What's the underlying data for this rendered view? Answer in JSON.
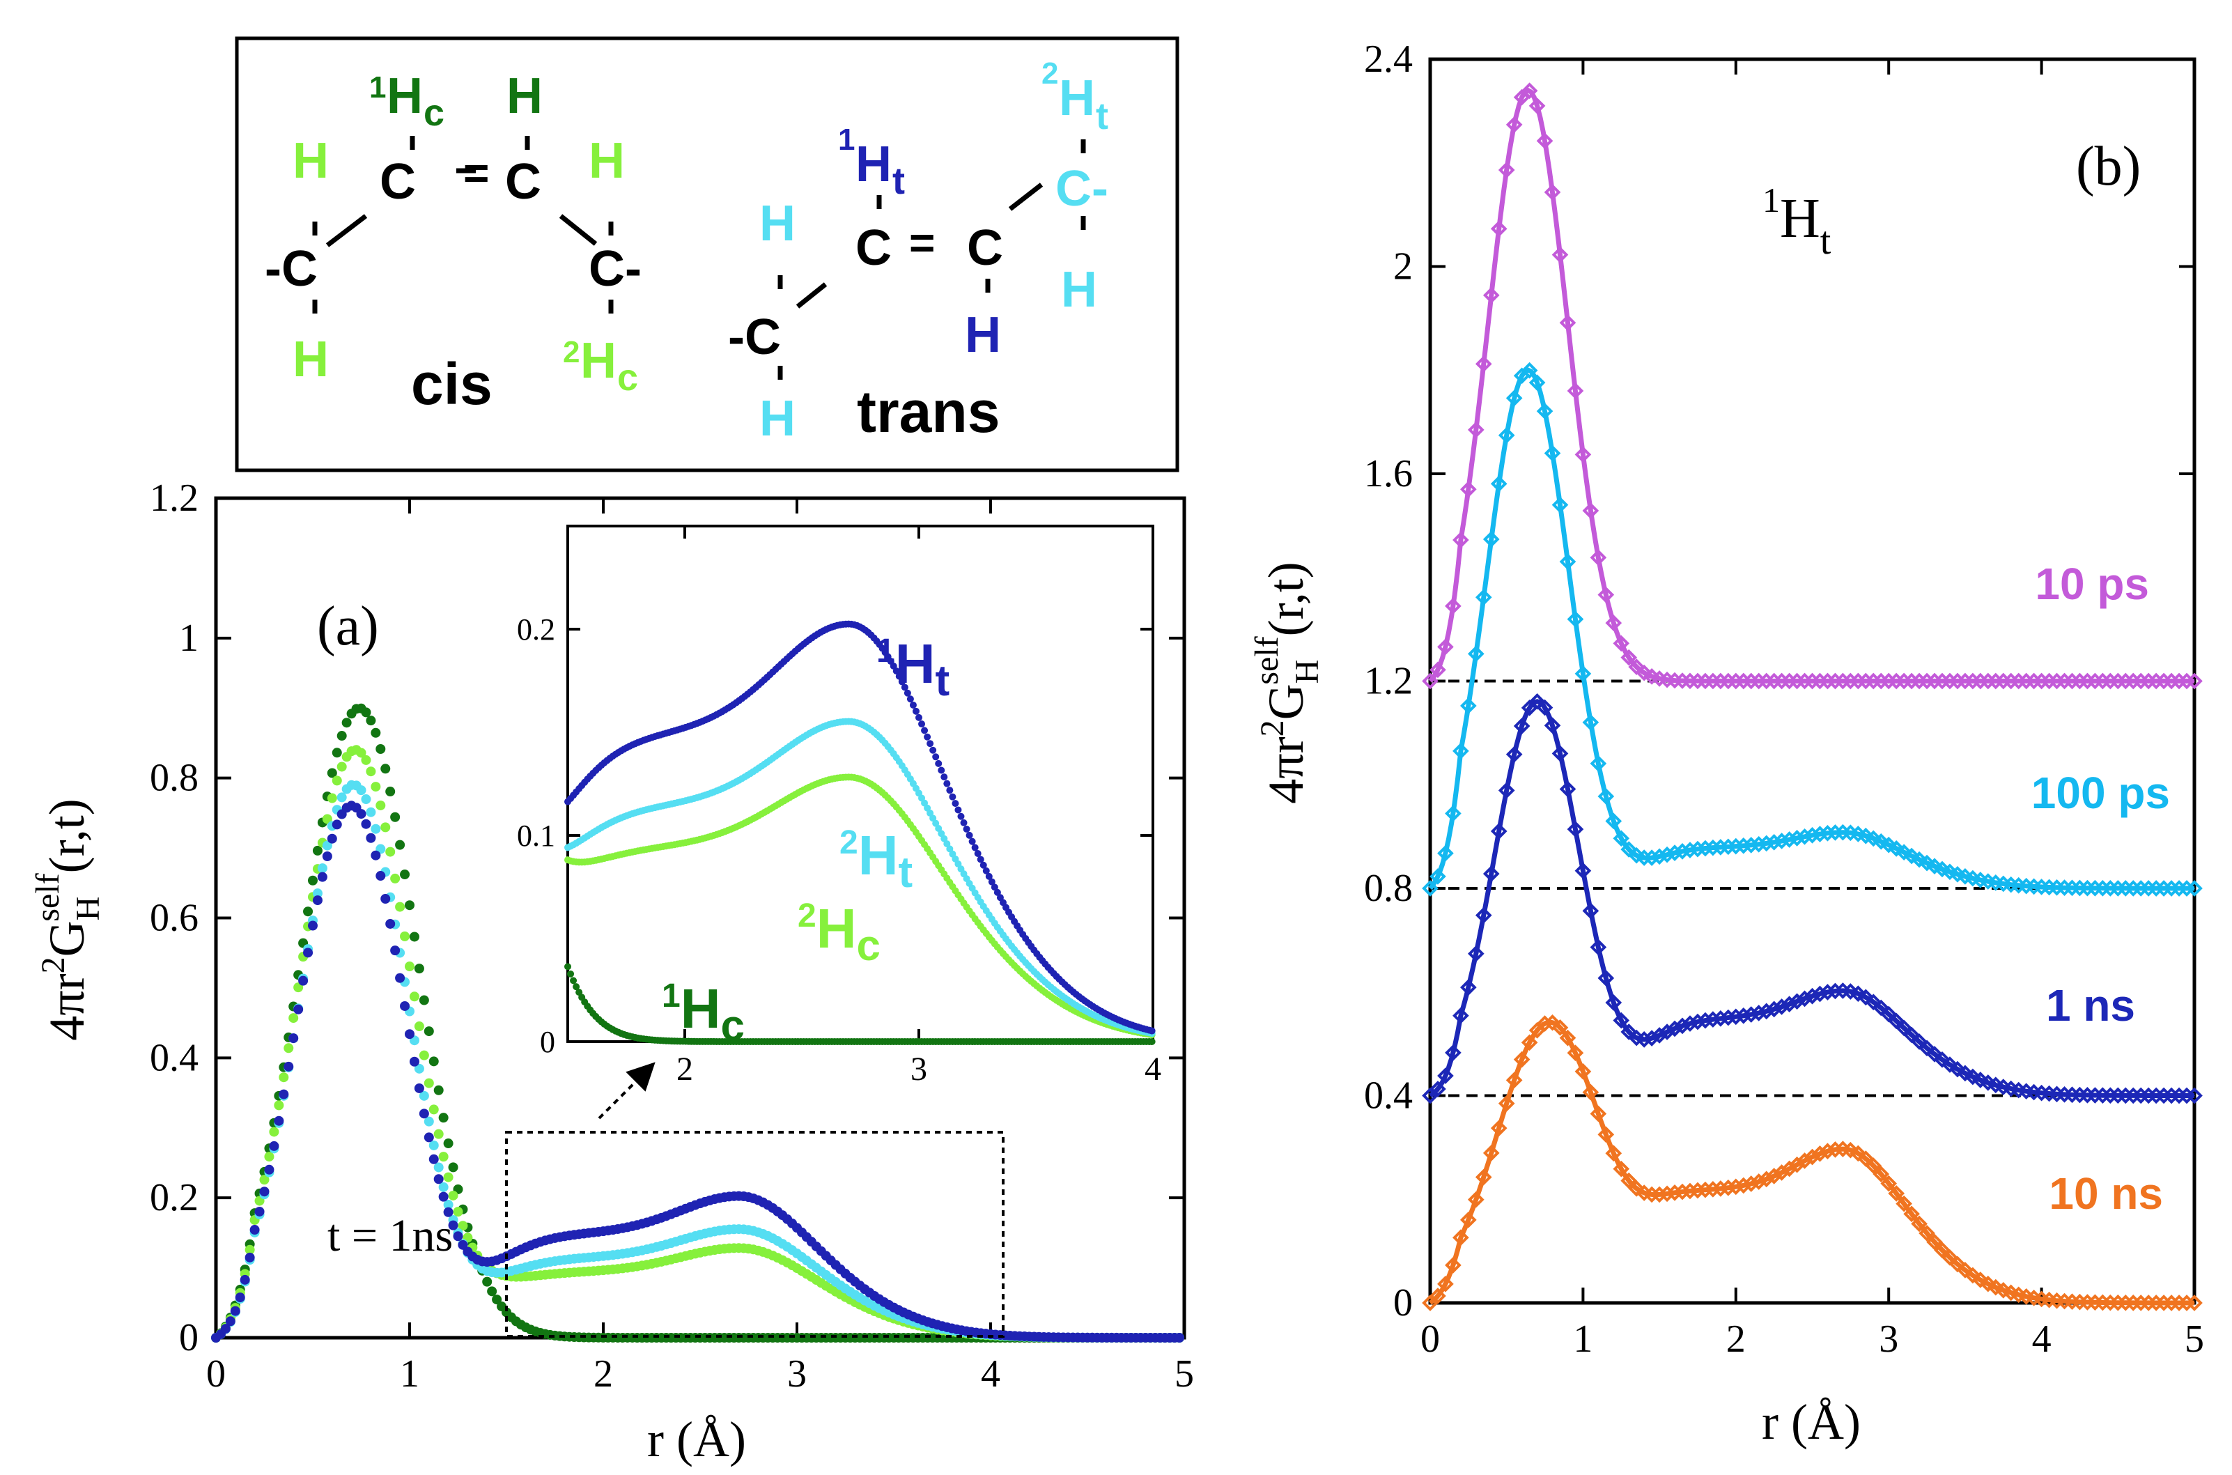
{
  "colors": {
    "H1c": "#127512",
    "H2c": "#86f03c",
    "H1t": "#1f23b3",
    "H2t": "#55def2",
    "ps10": "#c35ad9",
    "ps100": "#14b8f0",
    "ns1": "#1c27b7",
    "ns10": "#f07420",
    "black": "#000000"
  },
  "molecules": {
    "cis": {
      "label": "cis",
      "H1c_sup": "1",
      "H1c_main": "H",
      "H1c_sub": "c",
      "H2c_sup": "2",
      "H2c_main": "H",
      "H2c_sub": "c",
      "atom_C": "C",
      "atom_H": "H",
      "atom_Cdash": "-C",
      "atom_Cminus": "C-",
      "bond_double": "="
    },
    "trans": {
      "label": "trans",
      "H1t_sup": "1",
      "H1t_main": "H",
      "H1t_sub": "t",
      "H2t_sup": "2",
      "H2t_main": "H",
      "H2t_sub": "t",
      "atom_C": "C",
      "atom_H": "H",
      "atom_Cdash": "-C",
      "atom_Cminus": "C-",
      "bond_double": "="
    }
  },
  "chart_data": [
    {
      "id": "a",
      "type": "scatter",
      "panel_label": "(a)",
      "annotation": "t = 1ns",
      "xlabel": "r (Å)",
      "ylabel": "4πr²G_H^self(r,t)",
      "ylabel_parts": {
        "pre": "4πr",
        "sq": "2",
        "G": "G",
        "sub": "H",
        "sup": "self",
        "post": "(r,t)"
      },
      "xlim": [
        0,
        5
      ],
      "ylim": [
        0,
        1.2
      ],
      "xticks": [
        "0",
        "1",
        "2",
        "3",
        "4",
        "5"
      ],
      "yticks": [
        "0",
        "0.2",
        "0.4",
        "0.6",
        "0.8",
        "1",
        "1.2"
      ],
      "series": [
        {
          "name": "1Hc",
          "color_key": "H1c",
          "peak_r": 0.74,
          "peak": 0.9,
          "sigma": 0.3,
          "tail": 0.0
        },
        {
          "name": "2Hc",
          "color_key": "H2c",
          "peak_r": 0.72,
          "peak": 0.84,
          "sigma": 0.29,
          "tail": 0.095
        },
        {
          "name": "2Ht",
          "color_key": "H2t",
          "peak_r": 0.71,
          "peak": 0.79,
          "sigma": 0.28,
          "tail": 0.115
        },
        {
          "name": "1Ht",
          "color_key": "H1t",
          "peak_r": 0.7,
          "peak": 0.76,
          "sigma": 0.28,
          "tail": 0.15
        }
      ],
      "inset": {
        "xlim": [
          1.5,
          4
        ],
        "ylim": [
          0,
          0.25
        ],
        "xticks": [
          "2",
          "3",
          "4"
        ],
        "yticks": [
          "0",
          "0.1",
          "0.2"
        ],
        "labels": [
          {
            "sup": "1",
            "main": "H",
            "sub": "t",
            "color_key": "H1t"
          },
          {
            "sup": "2",
            "main": "H",
            "sub": "t",
            "color_key": "H2t"
          },
          {
            "sup": "2",
            "main": "H",
            "sub": "c",
            "color_key": "H2c"
          },
          {
            "sup": "1",
            "main": "H",
            "sub": "c",
            "color_key": "H1c"
          }
        ]
      }
    },
    {
      "id": "b",
      "type": "line",
      "panel_label": "(b)",
      "species_label": {
        "sup": "1",
        "main": "H",
        "sub": "t"
      },
      "xlabel": "r (Å)",
      "ylabel": "4πr²G_H^self(r,t)",
      "xlim": [
        0,
        5
      ],
      "ylim": [
        0,
        2.4
      ],
      "xticks": [
        "0",
        "1",
        "2",
        "3",
        "4",
        "5"
      ],
      "yticks": [
        "0",
        "0.4",
        "0.8",
        "1.2",
        "1.6",
        "2",
        "2.4"
      ],
      "baselines": [
        1.2,
        0.8,
        0.4
      ],
      "series": [
        {
          "name": "10 ps",
          "color_key": "ps10",
          "offset": 1.2,
          "peak_r": 0.64,
          "peak": 1.14,
          "sigma": 0.26,
          "tail": 0.0
        },
        {
          "name": "100 ps",
          "color_key": "ps100",
          "offset": 0.8,
          "peak_r": 0.64,
          "peak": 1.0,
          "sigma": 0.27,
          "tail": 0.08
        },
        {
          "name": "1 ns",
          "color_key": "ns1",
          "offset": 0.4,
          "peak_r": 0.7,
          "peak": 0.76,
          "sigma": 0.28,
          "tail": 0.15
        },
        {
          "name": "10 ns",
          "color_key": "ns10",
          "offset": 0.0,
          "peak_r": 0.78,
          "peak": 0.54,
          "sigma": 0.34,
          "tail": 0.22
        }
      ]
    }
  ]
}
